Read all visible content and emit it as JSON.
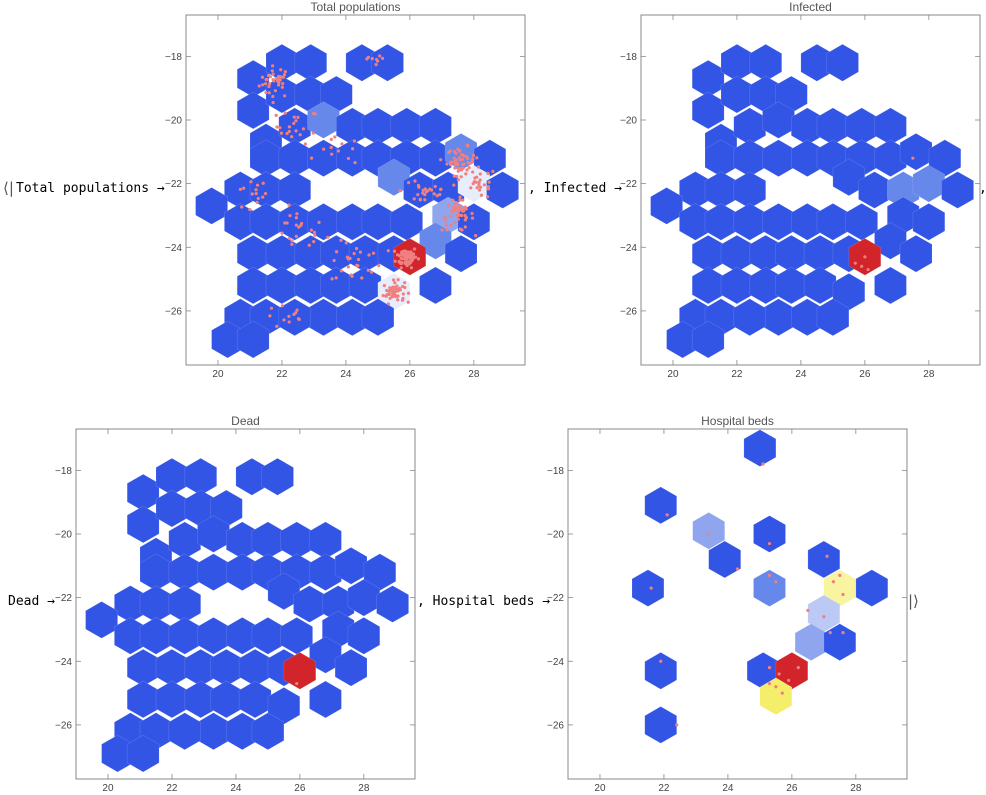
{
  "association": {
    "open": "⟨|",
    "close": "|⟩",
    "comma": ",",
    "arrow": "→",
    "keys": [
      "Total populations",
      "Infected",
      "Dead",
      "Hospital beds"
    ]
  },
  "colors": {
    "blue": "#3355e6",
    "blue_light": "#6688ea",
    "blue_lighter": "#8fa6ef",
    "blue_pale": "#bcc9f5",
    "white_blue": "#e8edfb",
    "red": "#d1242b",
    "yellow": "#f4ee6a",
    "yellow_pale": "#f8f4a0",
    "points": "#f08080",
    "frame": "#888888"
  },
  "chart_data": [
    {
      "type": "heatmap",
      "subtype": "hexagon-binned geographic map with point overlay",
      "title": "Total populations",
      "xlim": [
        19,
        29.6
      ],
      "ylim": [
        -27.7,
        -16.7
      ],
      "xticks": [
        "20",
        "22",
        "24",
        "26",
        "28"
      ],
      "yticks": [
        "-18",
        "-20",
        "-22",
        "-24",
        "-26"
      ],
      "hex_radius": 0.62,
      "cells": [
        {
          "x": 21.1,
          "y": -18.7,
          "c": "blue"
        },
        {
          "x": 22.0,
          "y": -18.2,
          "c": "blue"
        },
        {
          "x": 22.9,
          "y": -18.2,
          "c": "blue"
        },
        {
          "x": 24.5,
          "y": -18.2,
          "c": "blue"
        },
        {
          "x": 25.3,
          "y": -18.2,
          "c": "blue"
        },
        {
          "x": 21.1,
          "y": -19.7,
          "c": "blue"
        },
        {
          "x": 22.0,
          "y": -19.2,
          "c": "blue"
        },
        {
          "x": 22.9,
          "y": -19.2,
          "c": "blue"
        },
        {
          "x": 23.7,
          "y": -19.2,
          "c": "blue"
        },
        {
          "x": 21.5,
          "y": -20.7,
          "c": "blue"
        },
        {
          "x": 22.4,
          "y": -20.2,
          "c": "blue"
        },
        {
          "x": 23.3,
          "y": -20.0,
          "c": "blue_light"
        },
        {
          "x": 24.2,
          "y": -20.2,
          "c": "blue"
        },
        {
          "x": 25.0,
          "y": -20.2,
          "c": "blue"
        },
        {
          "x": 25.9,
          "y": -20.2,
          "c": "blue"
        },
        {
          "x": 26.8,
          "y": -20.2,
          "c": "blue"
        },
        {
          "x": 21.5,
          "y": -21.2,
          "c": "blue"
        },
        {
          "x": 22.4,
          "y": -21.2,
          "c": "blue"
        },
        {
          "x": 23.3,
          "y": -21.2,
          "c": "blue"
        },
        {
          "x": 24.2,
          "y": -21.2,
          "c": "blue"
        },
        {
          "x": 25.0,
          "y": -21.2,
          "c": "blue"
        },
        {
          "x": 25.9,
          "y": -21.2,
          "c": "blue"
        },
        {
          "x": 26.8,
          "y": -21.2,
          "c": "blue"
        },
        {
          "x": 27.6,
          "y": -21.0,
          "c": "blue_light"
        },
        {
          "x": 28.5,
          "y": -21.2,
          "c": "blue"
        },
        {
          "x": 20.7,
          "y": -22.2,
          "c": "blue"
        },
        {
          "x": 21.5,
          "y": -22.2,
          "c": "blue"
        },
        {
          "x": 22.4,
          "y": -22.2,
          "c": "blue"
        },
        {
          "x": 25.5,
          "y": -21.8,
          "c": "blue_light"
        },
        {
          "x": 26.3,
          "y": -22.2,
          "c": "blue"
        },
        {
          "x": 27.2,
          "y": -22.2,
          "c": "blue"
        },
        {
          "x": 28.0,
          "y": -22.0,
          "c": "white_blue"
        },
        {
          "x": 28.9,
          "y": -22.2,
          "c": "blue"
        },
        {
          "x": 19.8,
          "y": -22.7,
          "c": "blue"
        },
        {
          "x": 20.7,
          "y": -23.2,
          "c": "blue"
        },
        {
          "x": 21.5,
          "y": -23.2,
          "c": "blue"
        },
        {
          "x": 22.4,
          "y": -23.2,
          "c": "blue"
        },
        {
          "x": 23.3,
          "y": -23.2,
          "c": "blue"
        },
        {
          "x": 24.2,
          "y": -23.2,
          "c": "blue"
        },
        {
          "x": 25.0,
          "y": -23.2,
          "c": "blue"
        },
        {
          "x": 25.9,
          "y": -23.2,
          "c": "blue"
        },
        {
          "x": 27.2,
          "y": -23.0,
          "c": "blue_lighter"
        },
        {
          "x": 28.0,
          "y": -23.2,
          "c": "blue"
        },
        {
          "x": 21.1,
          "y": -24.2,
          "c": "blue"
        },
        {
          "x": 22.0,
          "y": -24.2,
          "c": "blue"
        },
        {
          "x": 22.9,
          "y": -24.2,
          "c": "blue"
        },
        {
          "x": 23.7,
          "y": -24.2,
          "c": "blue"
        },
        {
          "x": 24.6,
          "y": -24.2,
          "c": "blue"
        },
        {
          "x": 25.5,
          "y": -24.2,
          "c": "blue"
        },
        {
          "x": 26.8,
          "y": -23.8,
          "c": "blue_light"
        },
        {
          "x": 27.6,
          "y": -24.2,
          "c": "blue"
        },
        {
          "x": 21.1,
          "y": -25.2,
          "c": "blue"
        },
        {
          "x": 22.0,
          "y": -25.2,
          "c": "blue"
        },
        {
          "x": 22.9,
          "y": -25.2,
          "c": "blue"
        },
        {
          "x": 23.7,
          "y": -25.2,
          "c": "blue"
        },
        {
          "x": 24.6,
          "y": -25.2,
          "c": "blue"
        },
        {
          "x": 25.5,
          "y": -25.4,
          "c": "white_blue"
        },
        {
          "x": 26.0,
          "y": -24.3,
          "c": "red"
        },
        {
          "x": 26.8,
          "y": -25.2,
          "c": "blue"
        },
        {
          "x": 23.3,
          "y": -26.2,
          "c": "blue"
        },
        {
          "x": 24.2,
          "y": -26.2,
          "c": "blue"
        },
        {
          "x": 25.0,
          "y": -26.2,
          "c": "blue"
        },
        {
          "x": 20.7,
          "y": -26.2,
          "c": "blue"
        },
        {
          "x": 21.5,
          "y": -26.2,
          "c": "blue"
        },
        {
          "x": 22.4,
          "y": -26.2,
          "c": "blue"
        },
        {
          "x": 20.3,
          "y": -26.9,
          "c": "blue"
        },
        {
          "x": 21.1,
          "y": -26.9,
          "c": "blue"
        }
      ],
      "points_clusters": [
        {
          "x": 21.8,
          "y": -18.8,
          "sx": 0.45,
          "sy": 0.45,
          "n": 35
        },
        {
          "x": 22.5,
          "y": -20.2,
          "sx": 0.6,
          "sy": 0.5,
          "n": 20
        },
        {
          "x": 21.0,
          "y": -22.4,
          "sx": 0.5,
          "sy": 0.5,
          "n": 14
        },
        {
          "x": 22.5,
          "y": -23.5,
          "sx": 0.8,
          "sy": 0.6,
          "n": 22
        },
        {
          "x": 24.3,
          "y": -24.5,
          "sx": 0.7,
          "sy": 0.6,
          "n": 25
        },
        {
          "x": 25.9,
          "y": -24.3,
          "sx": 0.3,
          "sy": 0.3,
          "n": 70
        },
        {
          "x": 25.5,
          "y": -25.4,
          "sx": 0.3,
          "sy": 0.3,
          "n": 55
        },
        {
          "x": 27.6,
          "y": -21.3,
          "sx": 0.4,
          "sy": 0.4,
          "n": 55
        },
        {
          "x": 27.5,
          "y": -23.0,
          "sx": 0.45,
          "sy": 0.45,
          "n": 45
        },
        {
          "x": 26.5,
          "y": -22.2,
          "sx": 0.7,
          "sy": 0.5,
          "n": 25
        },
        {
          "x": 28.2,
          "y": -22.0,
          "sx": 0.45,
          "sy": 0.45,
          "n": 25
        },
        {
          "x": 24.8,
          "y": -18.2,
          "sx": 0.4,
          "sy": 0.3,
          "n": 8
        },
        {
          "x": 22.2,
          "y": -26.2,
          "sx": 0.7,
          "sy": 0.35,
          "n": 12
        },
        {
          "x": 23.8,
          "y": -21.0,
          "sx": 0.6,
          "sy": 0.4,
          "n": 12
        }
      ]
    },
    {
      "type": "heatmap",
      "subtype": "hexagon-binned geographic map with point overlay",
      "title": "Infected",
      "xlim": [
        19,
        29.6
      ],
      "ylim": [
        -27.7,
        -16.7
      ],
      "xticks": [
        "20",
        "22",
        "24",
        "26",
        "28"
      ],
      "yticks": [
        "-18",
        "-20",
        "-22",
        "-24",
        "-26"
      ],
      "hex_radius": 0.62,
      "red_cell": {
        "x": 26.0,
        "y": -24.3
      },
      "light_cell": {
        "x": 27.6,
        "y": -21.9
      },
      "points": [
        {
          "x": 27.5,
          "y": -21.2
        },
        {
          "x": 25.9,
          "y": -24.6
        },
        {
          "x": 25.7,
          "y": -24.5
        },
        {
          "x": 26.0,
          "y": -24.3
        },
        {
          "x": 26.1,
          "y": -24.7
        }
      ]
    },
    {
      "type": "heatmap",
      "subtype": "hexagon-binned geographic map with point overlay",
      "title": "Dead",
      "xlim": [
        19,
        29.6
      ],
      "ylim": [
        -27.7,
        -16.7
      ],
      "xticks": [
        "20",
        "22",
        "24",
        "26",
        "28"
      ],
      "yticks": [
        "-18",
        "-20",
        "-22",
        "-24",
        "-26"
      ],
      "hex_radius": 0.62,
      "red_cell": {
        "x": 26.0,
        "y": -24.3
      },
      "points": [
        {
          "x": 25.9,
          "y": -24.7
        }
      ]
    },
    {
      "type": "heatmap",
      "subtype": "hexagon-binned geographic map with point overlay",
      "title": "Hospital beds",
      "xlim": [
        19,
        29.6
      ],
      "ylim": [
        -27.7,
        -16.7
      ],
      "xticks": [
        "20",
        "22",
        "24",
        "26",
        "28"
      ],
      "yticks": [
        "-18",
        "-20",
        "-22",
        "-24",
        "-26"
      ],
      "hex_radius": 0.62,
      "cells": [
        {
          "x": 25.0,
          "y": -17.3,
          "c": "blue"
        },
        {
          "x": 21.9,
          "y": -19.1,
          "c": "blue"
        },
        {
          "x": 23.4,
          "y": -19.9,
          "c": "blue_lighter"
        },
        {
          "x": 25.3,
          "y": -20.0,
          "c": "blue"
        },
        {
          "x": 23.9,
          "y": -20.8,
          "c": "blue"
        },
        {
          "x": 27.0,
          "y": -20.8,
          "c": "blue"
        },
        {
          "x": 21.5,
          "y": -21.7,
          "c": "blue"
        },
        {
          "x": 25.3,
          "y": -21.7,
          "c": "blue_light"
        },
        {
          "x": 27.5,
          "y": -21.7,
          "c": "yellow_pale"
        },
        {
          "x": 28.5,
          "y": -21.7,
          "c": "blue"
        },
        {
          "x": 27.0,
          "y": -22.5,
          "c": "blue_pale"
        },
        {
          "x": 26.6,
          "y": -23.4,
          "c": "blue_lighter"
        },
        {
          "x": 27.5,
          "y": -23.4,
          "c": "blue"
        },
        {
          "x": 21.9,
          "y": -24.3,
          "c": "blue"
        },
        {
          "x": 25.1,
          "y": -24.3,
          "c": "blue"
        },
        {
          "x": 26.0,
          "y": -24.3,
          "c": "red"
        },
        {
          "x": 25.5,
          "y": -25.1,
          "c": "yellow"
        },
        {
          "x": 21.9,
          "y": -26.0,
          "c": "blue"
        }
      ],
      "points": [
        {
          "x": 25.1,
          "y": -17.8
        },
        {
          "x": 22.1,
          "y": -19.4
        },
        {
          "x": 23.4,
          "y": -20.0
        },
        {
          "x": 25.3,
          "y": -20.3
        },
        {
          "x": 24.3,
          "y": -21.1
        },
        {
          "x": 27.1,
          "y": -20.7
        },
        {
          "x": 21.6,
          "y": -21.7
        },
        {
          "x": 25.3,
          "y": -21.3
        },
        {
          "x": 25.5,
          "y": -21.5
        },
        {
          "x": 27.3,
          "y": -21.5
        },
        {
          "x": 27.6,
          "y": -21.9
        },
        {
          "x": 27.5,
          "y": -21.3
        },
        {
          "x": 26.5,
          "y": -22.4
        },
        {
          "x": 27.0,
          "y": -22.6
        },
        {
          "x": 27.2,
          "y": -23.1
        },
        {
          "x": 27.6,
          "y": -23.1
        },
        {
          "x": 21.9,
          "y": -24.0
        },
        {
          "x": 25.3,
          "y": -24.2
        },
        {
          "x": 25.6,
          "y": -24.4
        },
        {
          "x": 26.2,
          "y": -24.2
        },
        {
          "x": 25.5,
          "y": -24.8
        },
        {
          "x": 25.7,
          "y": -25.0
        },
        {
          "x": 25.9,
          "y": -24.6
        },
        {
          "x": 25.3,
          "y": -24.7
        },
        {
          "x": 22.4,
          "y": -26.0
        }
      ]
    }
  ]
}
